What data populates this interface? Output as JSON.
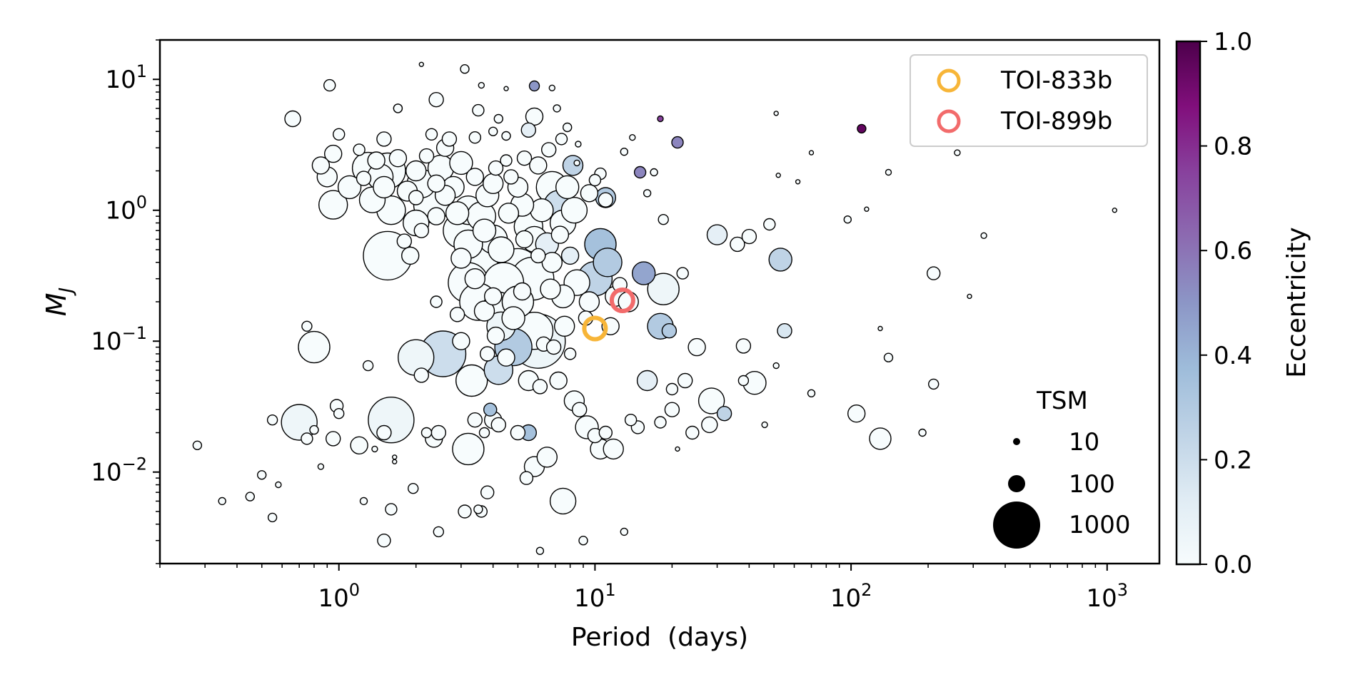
{
  "chart_data": {
    "type": "scatter",
    "xlabel": "Period  (days)",
    "ylabel": "M",
    "ylabel_sub": "J",
    "xscale": "log",
    "yscale": "log",
    "xlim": [
      0.2,
      1600
    ],
    "ylim": [
      0.002,
      20
    ],
    "x_ticks": [
      {
        "value": 1,
        "base": "10",
        "exp": "0"
      },
      {
        "value": 10,
        "base": "10",
        "exp": "1"
      },
      {
        "value": 100,
        "base": "10",
        "exp": "2"
      },
      {
        "value": 1000,
        "base": "10",
        "exp": "3"
      }
    ],
    "y_ticks": [
      {
        "value": 10,
        "base": "10",
        "exp": "1"
      },
      {
        "value": 1,
        "base": "10",
        "exp": "0"
      },
      {
        "value": 0.1,
        "base": "10",
        "exp": "−1"
      },
      {
        "value": 0.01,
        "base": "10",
        "exp": "−2"
      }
    ],
    "colorbar": {
      "label": "Eccentricity",
      "range": [
        0,
        1
      ],
      "ticks": [
        "0.0",
        "0.2",
        "0.4",
        "0.6",
        "0.8",
        "1.0"
      ],
      "colors": [
        "#f7fcfd",
        "#e0ecf4",
        "#bfd3e6",
        "#9ebcda",
        "#8c96c6",
        "#8c6bb1",
        "#88419d",
        "#810f7c",
        "#4d004b"
      ]
    },
    "highlights": [
      {
        "name": "TOI-833b",
        "period": 10.0,
        "mass": 0.125,
        "color": "#f7b538"
      },
      {
        "name": "TOI-899b",
        "period": 12.8,
        "mass": 0.205,
        "color": "#f26b6b"
      }
    ],
    "size_legend": {
      "title": "TSM",
      "entries": [
        {
          "label": "10",
          "value": 10
        },
        {
          "label": "100",
          "value": 100
        },
        {
          "label": "1000",
          "value": 1000
        }
      ]
    },
    "points": [
      [
        0.28,
        0.016,
        6,
        0
      ],
      [
        0.35,
        0.006,
        5,
        0
      ],
      [
        0.45,
        0.0065,
        6,
        0
      ],
      [
        0.55,
        0.0045,
        6,
        0
      ],
      [
        0.58,
        0.008,
        4,
        0
      ],
      [
        0.5,
        0.0095,
        6,
        0
      ],
      [
        0.55,
        0.025,
        7,
        0
      ],
      [
        0.66,
        5.0,
        11,
        0
      ],
      [
        0.75,
        0.13,
        7,
        0
      ],
      [
        0.8,
        0.09,
        22,
        0
      ],
      [
        0.7,
        0.024,
        25,
        0.05
      ],
      [
        0.75,
        0.018,
        8,
        0
      ],
      [
        0.8,
        0.021,
        6,
        0
      ],
      [
        0.85,
        0.011,
        4,
        0
      ],
      [
        0.92,
        9.0,
        8,
        0
      ],
      [
        0.95,
        2.7,
        12,
        0
      ],
      [
        0.95,
        0.018,
        10,
        0
      ],
      [
        0.98,
        0.032,
        9,
        0
      ],
      [
        1.0,
        0.028,
        7,
        0
      ],
      [
        1.2,
        0.016,
        12,
        0
      ],
      [
        1.25,
        0.006,
        5,
        0
      ],
      [
        1.3,
        0.065,
        7,
        0
      ],
      [
        1.38,
        0.015,
        4,
        0
      ],
      [
        1.5,
        0.02,
        10,
        0
      ],
      [
        1.6,
        0.025,
        32,
        0.05
      ],
      [
        1.6,
        0.0052,
        8,
        0
      ],
      [
        1.5,
        0.003,
        9,
        0
      ],
      [
        1.65,
        0.013,
        3,
        0
      ],
      [
        1.7,
        6.0,
        6,
        0
      ],
      [
        1.55,
        0.45,
        34,
        0
      ],
      [
        1.55,
        2.0,
        25,
        0
      ],
      [
        2.0,
        0.075,
        25,
        0.05
      ],
      [
        1.95,
        0.0075,
        7,
        0
      ],
      [
        2.2,
        0.02,
        7,
        0
      ],
      [
        2.1,
        0.055,
        10,
        0
      ],
      [
        2.35,
        0.018,
        12,
        0
      ],
      [
        2.45,
        0.02,
        10,
        0
      ],
      [
        2.45,
        0.0035,
        7,
        0
      ],
      [
        2.55,
        0.08,
        32,
        0.2
      ],
      [
        3.1,
        0.005,
        9,
        0
      ],
      [
        3.5,
        0.0052,
        6,
        0
      ],
      [
        3.2,
        0.015,
        22,
        0
      ],
      [
        3.8,
        0.007,
        9,
        0
      ],
      [
        3.6,
        0.005,
        8,
        0
      ],
      [
        3.4,
        0.025,
        10,
        0
      ],
      [
        3.7,
        0.02,
        7,
        0
      ],
      [
        4.0,
        0.025,
        12,
        0
      ],
      [
        3.9,
        0.03,
        9,
        0.35
      ],
      [
        4.2,
        0.023,
        10,
        0
      ],
      [
        5.0,
        0.02,
        10,
        0
      ],
      [
        5.4,
        0.009,
        9,
        0
      ],
      [
        5.8,
        0.011,
        14,
        0
      ],
      [
        6.1,
        0.0025,
        5,
        0
      ],
      [
        5.5,
        0.02,
        11,
        0.35
      ],
      [
        6.5,
        0.013,
        14,
        0
      ],
      [
        7.5,
        0.006,
        18,
        0
      ],
      [
        6.3,
        0.095,
        10,
        0
      ],
      [
        7.2,
        0.05,
        12,
        0
      ],
      [
        8.3,
        0.035,
        14,
        0
      ],
      [
        8.7,
        0.03,
        10,
        0
      ],
      [
        9.3,
        0.022,
        16,
        0
      ],
      [
        10.0,
        0.019,
        10,
        0
      ],
      [
        10.5,
        0.015,
        14,
        0
      ],
      [
        11.0,
        0.02,
        9,
        0
      ],
      [
        11.8,
        0.015,
        14,
        0
      ],
      [
        13.8,
        0.025,
        8,
        0
      ],
      [
        14.7,
        0.022,
        9,
        0
      ],
      [
        16.0,
        0.05,
        14,
        0.1
      ],
      [
        18.0,
        0.024,
        8,
        0
      ],
      [
        20.0,
        0.03,
        10,
        0
      ],
      [
        24.0,
        0.02,
        9,
        0
      ],
      [
        25.0,
        0.09,
        12,
        0
      ],
      [
        28.0,
        0.023,
        11,
        0
      ],
      [
        28.5,
        0.035,
        18,
        0
      ],
      [
        32.0,
        0.028,
        10,
        0.25
      ],
      [
        38.0,
        0.05,
        7,
        0
      ],
      [
        42.0,
        0.048,
        16,
        0
      ],
      [
        46.0,
        0.023,
        4,
        0
      ],
      [
        51.0,
        0.065,
        4,
        0
      ],
      [
        70.0,
        0.04,
        5,
        0
      ],
      [
        105.0,
        0.028,
        12,
        0
      ],
      [
        130.0,
        0.018,
        15,
        0
      ],
      [
        140.0,
        0.075,
        6,
        0
      ],
      [
        130.0,
        0.125,
        3,
        0
      ],
      [
        190.0,
        0.02,
        5,
        0
      ],
      [
        210.0,
        0.047,
        7,
        0
      ],
      [
        9.0,
        0.003,
        6,
        0
      ],
      [
        13.0,
        0.0035,
        5,
        0
      ],
      [
        21.0,
        0.015,
        3,
        0
      ],
      [
        1.65,
        0.012,
        3,
        0
      ],
      [
        1.0,
        3.8,
        8,
        0
      ],
      [
        1.3,
        2.1,
        22,
        0
      ],
      [
        1.45,
        1.8,
        18,
        0
      ],
      [
        1.5,
        1.5,
        15,
        0
      ],
      [
        1.35,
        1.2,
        18,
        0
      ],
      [
        1.6,
        1.0,
        20,
        0
      ],
      [
        1.85,
        1.4,
        14,
        0
      ],
      [
        2.0,
        0.8,
        18,
        0
      ],
      [
        2.1,
        1.6,
        20,
        0
      ],
      [
        2.3,
        1.1,
        25,
        0
      ],
      [
        2.5,
        2.1,
        18,
        0
      ],
      [
        2.8,
        1.5,
        15,
        0
      ],
      [
        3.0,
        0.7,
        25,
        0
      ],
      [
        3.2,
        1.0,
        20,
        0
      ],
      [
        3.0,
        2.3,
        16,
        0
      ],
      [
        3.4,
        1.8,
        12,
        0
      ],
      [
        3.6,
        0.9,
        20,
        0
      ],
      [
        3.8,
        1.3,
        16,
        0
      ],
      [
        4.0,
        0.6,
        20,
        0
      ],
      [
        3.6,
        0.4,
        32,
        0
      ],
      [
        3.2,
        0.28,
        28,
        0
      ],
      [
        3.5,
        0.2,
        26,
        0
      ],
      [
        4.2,
        0.18,
        22,
        0
      ],
      [
        4.4,
        0.28,
        28,
        0
      ],
      [
        5.0,
        0.35,
        30,
        0
      ],
      [
        5.0,
        0.2,
        22,
        0
      ],
      [
        4.3,
        0.13,
        20,
        0.05
      ],
      [
        5.8,
        0.12,
        26,
        0
      ],
      [
        6.0,
        0.1,
        38,
        0.05
      ],
      [
        4.8,
        0.09,
        26,
        0.3
      ],
      [
        4.2,
        0.06,
        20,
        0.2
      ],
      [
        5.5,
        0.05,
        14,
        0
      ],
      [
        6.1,
        0.045,
        10,
        0
      ],
      [
        3.3,
        0.05,
        22,
        0
      ],
      [
        3.0,
        0.1,
        12,
        0
      ],
      [
        2.9,
        0.16,
        10,
        0
      ],
      [
        3.8,
        0.08,
        10,
        0
      ],
      [
        4.5,
        0.075,
        12,
        0
      ],
      [
        5.7,
        0.3,
        30,
        0
      ],
      [
        6.8,
        0.4,
        14,
        0
      ],
      [
        7.5,
        0.22,
        16,
        0
      ],
      [
        8.0,
        0.45,
        12,
        0.1
      ],
      [
        8.5,
        0.28,
        18,
        0
      ],
      [
        9.5,
        0.2,
        14,
        0
      ],
      [
        10.0,
        0.3,
        24,
        0.25
      ],
      [
        10.5,
        0.55,
        22,
        0.35
      ],
      [
        11.2,
        0.4,
        20,
        0.3
      ],
      [
        11.5,
        0.13,
        12,
        0
      ],
      [
        11.0,
        1.25,
        14,
        0.3
      ],
      [
        12.0,
        0.22,
        14,
        0
      ],
      [
        12.5,
        0.27,
        10,
        0
      ],
      [
        13.5,
        0.2,
        14,
        0
      ],
      [
        15.5,
        0.33,
        16,
        0.45
      ],
      [
        18.0,
        0.13,
        18,
        0.3
      ],
      [
        19.5,
        0.12,
        10,
        0.3
      ],
      [
        18.5,
        0.25,
        22,
        0.05
      ],
      [
        22.0,
        0.33,
        8,
        0
      ],
      [
        22.5,
        0.05,
        10,
        0
      ],
      [
        20.0,
        0.043,
        8,
        0
      ],
      [
        30.0,
        0.65,
        14,
        0.1
      ],
      [
        36.0,
        0.55,
        10,
        0
      ],
      [
        40.0,
        0.63,
        10,
        0
      ],
      [
        48.0,
        0.78,
        8,
        0
      ],
      [
        53.0,
        0.42,
        16,
        0.25
      ],
      [
        55.0,
        0.12,
        10,
        0.15
      ],
      [
        38.0,
        0.092,
        10,
        0
      ],
      [
        97.0,
        0.85,
        5,
        0
      ],
      [
        115.0,
        1.02,
        3,
        0
      ],
      [
        140.0,
        1.95,
        4,
        0
      ],
      [
        210.0,
        0.33,
        9,
        0
      ],
      [
        290.0,
        0.22,
        3,
        0
      ],
      [
        330.0,
        0.64,
        4,
        0
      ],
      [
        1070.0,
        1.0,
        3,
        0
      ],
      [
        62.0,
        1.65,
        3,
        0
      ],
      [
        52.0,
        1.85,
        3,
        0
      ],
      [
        70.0,
        2.75,
        3,
        0
      ],
      [
        260.0,
        2.75,
        4,
        0
      ],
      [
        110.0,
        4.2,
        6,
        0.95
      ],
      [
        51.0,
        5.5,
        3,
        0
      ],
      [
        21.0,
        3.3,
        8,
        0.55
      ],
      [
        18.0,
        5.0,
        4,
        0.75
      ],
      [
        15.0,
        1.95,
        8,
        0.55
      ],
      [
        14.0,
        3.6,
        4,
        0
      ],
      [
        13.0,
        2.8,
        5,
        0
      ],
      [
        16.0,
        1.35,
        5,
        0
      ],
      [
        18.5,
        0.85,
        7,
        0
      ],
      [
        17.0,
        1.95,
        5,
        0
      ],
      [
        10.5,
        1.9,
        8,
        0
      ],
      [
        11.0,
        1.2,
        10,
        0
      ],
      [
        9.5,
        1.35,
        12,
        0
      ],
      [
        10.0,
        1.7,
        8,
        0
      ],
      [
        8.2,
        2.2,
        14,
        0.25
      ],
      [
        7.8,
        1.5,
        16,
        0
      ],
      [
        7.5,
        0.8,
        18,
        0
      ],
      [
        8.3,
        1.0,
        18,
        0
      ],
      [
        7.2,
        1.1,
        20,
        0.2
      ],
      [
        6.8,
        1.5,
        22,
        0
      ],
      [
        6.2,
        1.0,
        16,
        0
      ],
      [
        5.8,
        0.6,
        18,
        0
      ],
      [
        5.5,
        0.75,
        20,
        0
      ],
      [
        5.2,
        1.1,
        16,
        0
      ],
      [
        5.0,
        1.5,
        14,
        0
      ],
      [
        4.7,
        1.8,
        10,
        0
      ],
      [
        4.5,
        2.4,
        8,
        0
      ],
      [
        4.1,
        2.1,
        10,
        0
      ],
      [
        4.0,
        1.6,
        14,
        0
      ],
      [
        5.3,
        2.5,
        10,
        0
      ],
      [
        6.0,
        2.2,
        12,
        0
      ],
      [
        6.6,
        2.9,
        10,
        0
      ],
      [
        7.4,
        3.5,
        8,
        0
      ],
      [
        5.5,
        4.1,
        10,
        0.1
      ],
      [
        5.8,
        5.2,
        12,
        0
      ],
      [
        4.0,
        4.0,
        6,
        0
      ],
      [
        3.5,
        5.8,
        8,
        0
      ],
      [
        4.2,
        5.0,
        6,
        0
      ],
      [
        4.5,
        3.7,
        6,
        0
      ],
      [
        2.6,
        3.0,
        12,
        0
      ],
      [
        2.4,
        7.0,
        10,
        0
      ],
      [
        3.1,
        12.0,
        6,
        0
      ],
      [
        3.6,
        9.0,
        4,
        0
      ],
      [
        4.5,
        8.5,
        3,
        0
      ],
      [
        5.8,
        8.9,
        7,
        0.5
      ],
      [
        6.8,
        8.6,
        4,
        0
      ],
      [
        7.1,
        6.0,
        5,
        0
      ],
      [
        7.8,
        4.3,
        6,
        0
      ],
      [
        8.6,
        3.2,
        4,
        0
      ],
      [
        8.5,
        2.3,
        4,
        0
      ],
      [
        1.7,
        6.0,
        6,
        0
      ],
      [
        2.1,
        13.0,
        3,
        0
      ],
      [
        1.5,
        3.5,
        10,
        0
      ],
      [
        1.1,
        1.5,
        16,
        0
      ],
      [
        0.95,
        1.1,
        20,
        0
      ],
      [
        0.9,
        1.8,
        14,
        0
      ],
      [
        0.85,
        2.2,
        12,
        0
      ],
      [
        1.2,
        2.9,
        8,
        0
      ],
      [
        1.4,
        2.4,
        12,
        0
      ],
      [
        1.25,
        1.75,
        10,
        0
      ],
      [
        1.7,
        2.5,
        12,
        0
      ],
      [
        2.3,
        3.8,
        8,
        0
      ],
      [
        2.7,
        3.5,
        10,
        0
      ],
      [
        3.4,
        3.6,
        8,
        0
      ],
      [
        2.2,
        2.6,
        10,
        0
      ],
      [
        2.0,
        2.0,
        14,
        0
      ],
      [
        2.4,
        1.6,
        12,
        0
      ],
      [
        2.6,
        1.3,
        14,
        0
      ],
      [
        2.9,
        0.95,
        16,
        0
      ],
      [
        2.4,
        0.9,
        12,
        0
      ],
      [
        2.1,
        0.7,
        10,
        0
      ],
      [
        1.9,
        0.45,
        12,
        0
      ],
      [
        1.8,
        0.58,
        10,
        0
      ],
      [
        2.0,
        1.25,
        10,
        0
      ],
      [
        3.2,
        0.55,
        20,
        0
      ],
      [
        3.0,
        0.43,
        14,
        0
      ],
      [
        3.7,
        0.7,
        16,
        0
      ],
      [
        4.3,
        0.5,
        18,
        0
      ],
      [
        4.6,
        0.95,
        14,
        0
      ],
      [
        5.3,
        0.6,
        12,
        0
      ],
      [
        6.5,
        0.55,
        16,
        0.1
      ],
      [
        7.3,
        0.65,
        12,
        0
      ],
      [
        6.0,
        0.45,
        10,
        0
      ],
      [
        3.4,
        0.3,
        14,
        0
      ],
      [
        4.0,
        0.22,
        12,
        0
      ],
      [
        3.7,
        0.17,
        14,
        0
      ],
      [
        4.8,
        0.15,
        16,
        0
      ],
      [
        4.1,
        0.11,
        12,
        0
      ],
      [
        5.2,
        0.24,
        12,
        0
      ],
      [
        6.7,
        0.25,
        14,
        0
      ],
      [
        7.6,
        0.13,
        14,
        0
      ],
      [
        6.9,
        0.09,
        10,
        0
      ],
      [
        8.0,
        0.08,
        8,
        0
      ],
      [
        2.4,
        0.2,
        8,
        0
      ],
      [
        9.2,
        0.15,
        10,
        0
      ]
    ]
  }
}
